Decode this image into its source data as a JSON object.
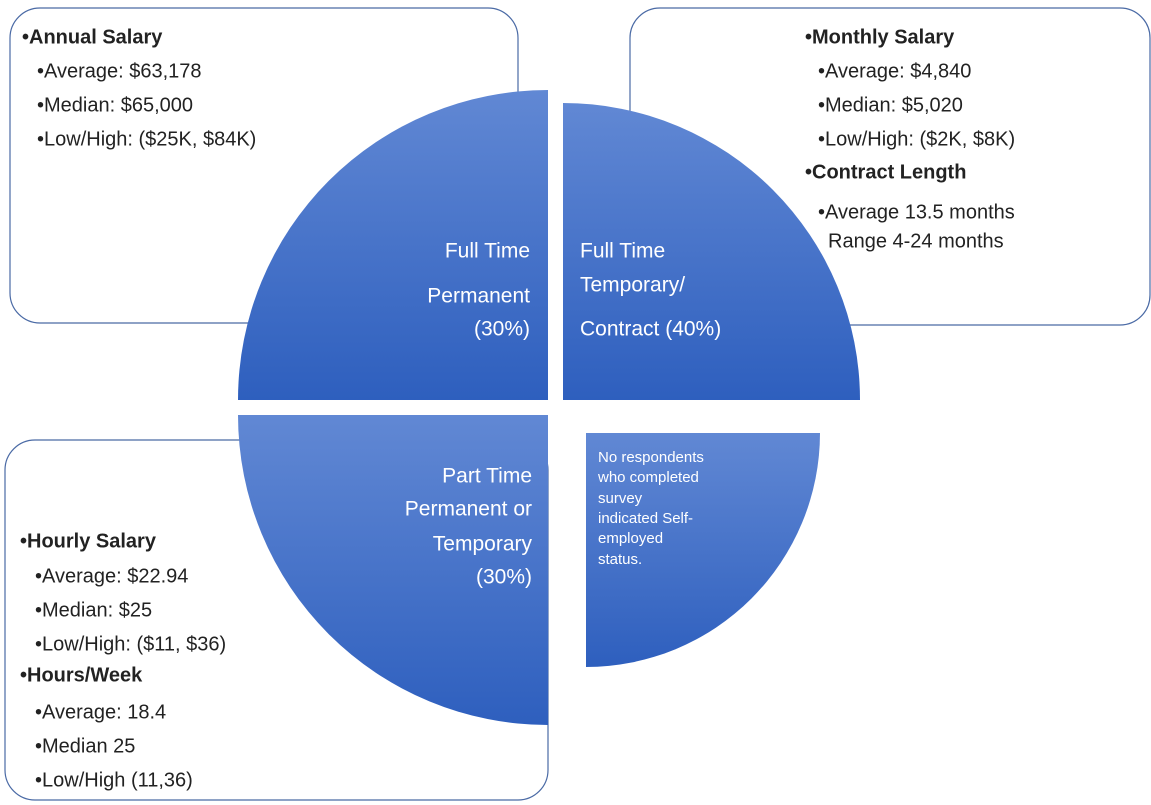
{
  "quadrants": [
    {
      "lines": [
        "Full Time",
        "Permanent",
        "(30%)"
      ]
    },
    {
      "lines": [
        "Full Time",
        "Temporary/",
        "Contract (40%)"
      ]
    },
    {
      "lines": [
        "Part Time",
        "Permanent or",
        "Temporary",
        "(30%)"
      ]
    },
    {
      "lines": [
        "No respondents",
        "who completed",
        "survey",
        "indicated Self-",
        "employed",
        "status."
      ]
    }
  ],
  "boxes": [
    {
      "lines": [
        {
          "text": "•Annual Salary",
          "bold": true
        },
        {
          "text": "•Average: $63,178"
        },
        {
          "text": "•Median: $65,000"
        },
        {
          "text": "•Low/High:  ($25K, $84K)"
        }
      ]
    },
    {
      "lines": [
        {
          "text": "•Monthly Salary",
          "bold": true
        },
        {
          "text": "•Average: $4,840"
        },
        {
          "text": "•Median: $5,020"
        },
        {
          "text": "•Low/High:  ($2K, $8K)"
        },
        {
          "text": "•Contract Length",
          "bold": true
        },
        {
          "text": "•Average 13.5 months"
        },
        {
          "text": "Range 4-24 months"
        }
      ]
    },
    {
      "lines": [
        {
          "text": "•Hourly Salary",
          "bold": true
        },
        {
          "text": "•Average: $22.94"
        },
        {
          "text": "•Median: $25"
        },
        {
          "text": "•Low/High: ($11, $36)"
        },
        {
          "text": "•Hours/Week",
          "bold": true
        },
        {
          "text": "•Average: 18.4"
        },
        {
          "text": "•Median 25"
        },
        {
          "text": "•Low/High (11,36)"
        }
      ]
    }
  ]
}
